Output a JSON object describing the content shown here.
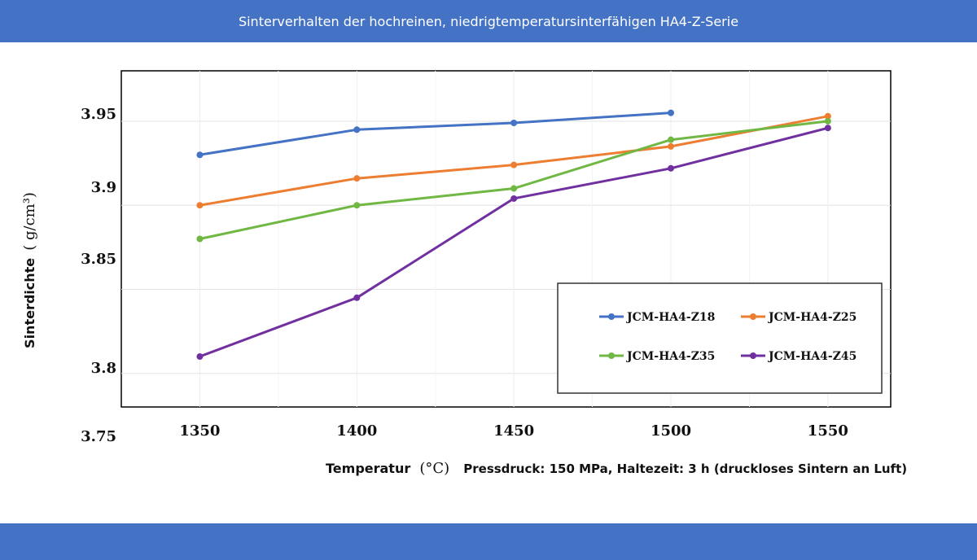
{
  "header": {
    "title": "Sinterverhalten der hochreinen, niedrigtemperatursinterfähigen HA4-Z-Serie"
  },
  "chart_data": {
    "type": "line",
    "x": [
      1350,
      1400,
      1450,
      1500,
      1550
    ],
    "x_ticks": [
      "1350",
      "1400",
      "1450",
      "1500",
      "1550"
    ],
    "y_ticks": [
      "3.75",
      "3.8",
      "3.85",
      "3.9",
      "3.95"
    ],
    "xlim": [
      1325,
      1570
    ],
    "ylim": [
      3.78,
      3.98
    ],
    "xlabel": "Temperatur",
    "xlabel_unit": "(°C)",
    "ylabel": "Sinterdichte",
    "ylabel_unit": "( g/cm³)",
    "note": "Pressdruck: 150 MPa, Haltezeit: 3 h (druckloses Sintern an Luft)",
    "legend_position": "bottom-right",
    "grid": true,
    "series": [
      {
        "name": "JCM-HA4-Z18",
        "color": "#4472C4",
        "points": [
          [
            1350,
            3.93
          ],
          [
            1400,
            3.945
          ],
          [
            1450,
            3.949
          ],
          [
            1500,
            3.955
          ]
        ]
      },
      {
        "name": "JCM-HA4-Z25",
        "color": "#ED7D31",
        "points": [
          [
            1350,
            3.9
          ],
          [
            1400,
            3.916
          ],
          [
            1450,
            3.924
          ],
          [
            1500,
            3.935
          ],
          [
            1550,
            3.953
          ]
        ]
      },
      {
        "name": "JCM-HA4-Z35",
        "color": "#70B843",
        "points": [
          [
            1350,
            3.88
          ],
          [
            1400,
            3.9
          ],
          [
            1450,
            3.91
          ],
          [
            1500,
            3.939
          ],
          [
            1550,
            3.95
          ]
        ]
      },
      {
        "name": "JCM-HA4-Z45",
        "color": "#7030A0",
        "points": [
          [
            1350,
            3.81
          ],
          [
            1400,
            3.845
          ],
          [
            1450,
            3.904
          ],
          [
            1500,
            3.922
          ],
          [
            1550,
            3.946
          ]
        ]
      }
    ]
  }
}
